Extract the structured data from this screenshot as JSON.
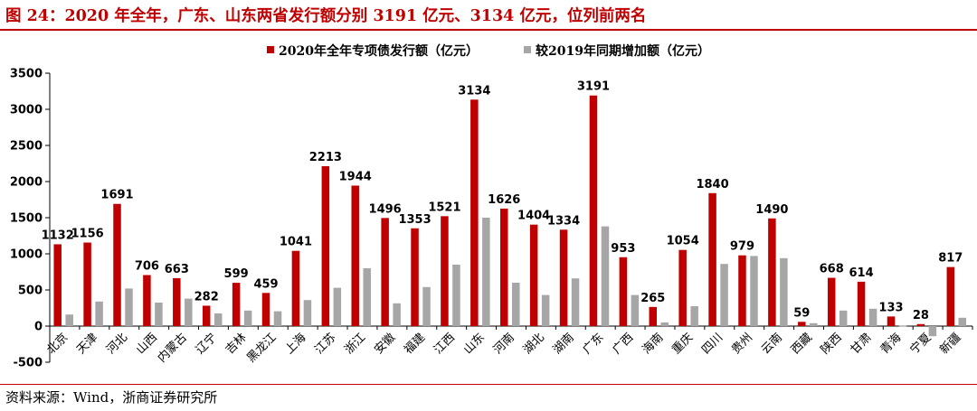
{
  "header": {
    "title": "图 24：2020 年全年，广东、山东两省发行额分别 3191 亿元、3134 亿元，位列前两名"
  },
  "footer": {
    "source": "资料来源：Wind，浙商证券研究所"
  },
  "colors": {
    "series_1": "#c00000",
    "series_2": "#a6a6a6",
    "rule": "#c00000"
  },
  "chart_data": {
    "type": "bar",
    "legend_position": "top-center",
    "grid": false,
    "ylim": [
      -500,
      3500
    ],
    "yticks": [
      -500,
      0,
      500,
      1000,
      1500,
      2000,
      2500,
      3000,
      3500
    ],
    "categories": [
      "北京",
      "天津",
      "河北",
      "山西",
      "内蒙古",
      "辽宁",
      "吉林",
      "黑龙江",
      "上海",
      "江苏",
      "浙江",
      "安徽",
      "福建",
      "江西",
      "山东",
      "河南",
      "湖北",
      "湖南",
      "广东",
      "广西",
      "海南",
      "重庆",
      "四川",
      "贵州",
      "云南",
      "西藏",
      "陕西",
      "甘肃",
      "青海",
      "宁夏",
      "新疆"
    ],
    "series": [
      {
        "name": "2020年全年专项债发行额（亿元）",
        "values": [
          1132,
          1156,
          1691,
          706,
          663,
          282,
          599,
          459,
          1041,
          2213,
          1944,
          1496,
          1353,
          1521,
          3134,
          1626,
          1404,
          1334,
          3191,
          953,
          265,
          1054,
          1840,
          979,
          1490,
          59,
          668,
          614,
          133,
          28,
          817
        ],
        "labels": [
          "1132",
          "1156",
          "1691",
          "706",
          "663",
          "282",
          "599",
          "459",
          "1041",
          "2213",
          "1944",
          "1496",
          "1353",
          "1521",
          "3134",
          "1626",
          "1404",
          "1334",
          "3191",
          "953",
          "265",
          "1054",
          "1840",
          "979",
          "1490",
          "59",
          "668",
          "614",
          "133",
          "28",
          "817"
        ]
      },
      {
        "name": "较2019年同期增加额（亿元）",
        "values": [
          160,
          340,
          520,
          325,
          380,
          175,
          215,
          205,
          360,
          530,
          800,
          315,
          540,
          850,
          1500,
          600,
          430,
          660,
          1380,
          430,
          50,
          275,
          860,
          970,
          940,
          40,
          215,
          240,
          5,
          -140,
          115
        ]
      }
    ]
  }
}
